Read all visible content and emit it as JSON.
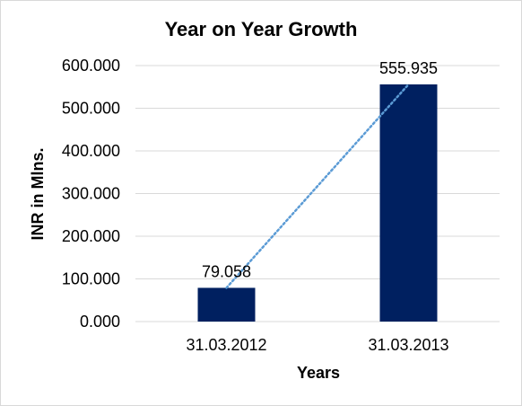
{
  "chart_data": {
    "type": "bar",
    "title": "Year on Year Growth",
    "xlabel": "Years",
    "ylabel": "INR in Mlns.",
    "categories": [
      "31.03.2012",
      "31.03.2013"
    ],
    "values": [
      79.058,
      555.935
    ],
    "value_labels": [
      "79.058",
      "555.935"
    ],
    "ylim": [
      0,
      600
    ],
    "y_ticks": [
      "0.000",
      "100.000",
      "200.000",
      "300.000",
      "400.000",
      "500.000",
      "600.000"
    ],
    "grid": true,
    "legend": "none",
    "trendline": "linear, dotted",
    "colors": {
      "bar": "#002060",
      "trendline": "#5b9bd5",
      "grid": "#d9d9d9"
    }
  }
}
